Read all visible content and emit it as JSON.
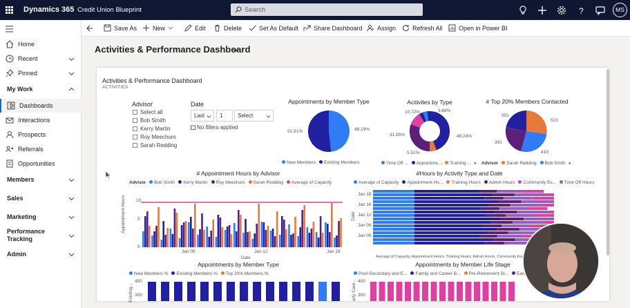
{
  "topbar": {
    "brand": "Dynamics 365",
    "app": "Credit Union Blueprint",
    "search_placeholder": "Search",
    "avatar": "MS"
  },
  "sidebar": {
    "items": [
      {
        "label": "Home",
        "icon": "home-icon"
      },
      {
        "label": "Recent",
        "icon": "clock-icon"
      },
      {
        "label": "Pinned",
        "icon": "pin-icon"
      }
    ],
    "group_mywork": "My Work",
    "mywork_items": [
      {
        "label": "Dashboards",
        "icon": "dashboard-icon"
      },
      {
        "label": "Interactions",
        "icon": "interactions-icon"
      },
      {
        "label": "Prospects",
        "icon": "prospects-icon"
      },
      {
        "label": "Referrals",
        "icon": "referrals-icon"
      },
      {
        "label": "Opportunities",
        "icon": "opportunities-icon"
      }
    ],
    "groups": [
      "Members",
      "Sales",
      "Marketing",
      "Performance Tracking",
      "Admin"
    ]
  },
  "commands": {
    "save_as": "Save As",
    "new": "New",
    "edit": "Edit",
    "delete": "Delete",
    "set_default": "Set As Default",
    "share": "Share Dashboard",
    "assign": "Assign",
    "refresh": "Refresh All",
    "open_bi": "Open in Power BI"
  },
  "page_title": "Activities & Performance Dashboard",
  "board": {
    "title": "Activities & Performance Dashboard",
    "subtitle": "ACTIVITIES",
    "advisor_label": "Advisor",
    "advisors": [
      "Select all",
      "Bob Smith",
      "Kerry Martin",
      "Roy Meechum",
      "Sarah Redding"
    ],
    "date_label": "Date",
    "date_last": "Last",
    "date_num": "1",
    "date_select": "Select",
    "no_filters": "No filters applied"
  },
  "charts": {
    "pie1": {
      "title": "Appointments by Member Type",
      "left_label": "51.81%",
      "right_label": "48.19%",
      "legend": [
        "New Members",
        "Existing Members"
      ]
    },
    "donut": {
      "title": "Acitivites by Type",
      "l1": "10.72%",
      "l2": "3.68%",
      "l3": "31.85%",
      "l4": "48.24%",
      "l5": "5.51%",
      "legend": [
        "Time Off ...",
        "Appointme...",
        "Training ..."
      ]
    },
    "pie2": {
      "title": "# Top 20% Members Contacted",
      "l1": "351",
      "l2": "523",
      "l3": "391",
      "l4": "419",
      "legend_title": "Advisor",
      "legend": [
        "Sarah Redding",
        "Bob Smith"
      ]
    },
    "bar1": {
      "title": "# Appointment Hours by Advisor",
      "legend_title": "Advisor",
      "legend": [
        "Bob Smith",
        "Kerry Martin",
        "Roy Meechum",
        "Sarah Redding",
        "Average of Capacity"
      ],
      "ylabel": "Appointment Hours",
      "xlabel": "Date",
      "yticks": [
        "10",
        "5",
        "0"
      ],
      "xticks": [
        "Jan 05",
        "Jan 12",
        "Jan 19"
      ]
    },
    "bar2": {
      "title": "#Hours by Activity Type and Date",
      "legend": [
        "Average of Capacity",
        "Appointment Ho...",
        "Training Hours",
        "Admin Hours",
        "Community Ev...",
        "Time Off Hours"
      ],
      "ylabel": "Date",
      "yticks": [
        "Jan 19",
        "Jan 16",
        "Jan 12",
        "Jan 09",
        "Jan 05"
      ],
      "xlabel": "Average of Capacity, Appointment Hours, Training Hours, Admin Hours, Community Events..."
    },
    "bar3": {
      "title": "Appointments by Member Type",
      "legend": [
        "New Members %",
        "Existing Members %",
        "Top 20% Members %"
      ],
      "ylabel": "Existing...",
      "yticks": [
        "400",
        "300"
      ]
    },
    "bar4": {
      "title": "Appointments by Member Life Stage",
      "legend": [
        "Post-Secondary and E...",
        "Family and Career B...",
        "Pre-Retirement St...",
        "Early Retirement"
      ],
      "ylabel": "arly Care...",
      "yticks": [
        "400",
        "300"
      ]
    }
  },
  "colors": {
    "blue": "#2f7cf6",
    "navy": "#2020a0",
    "orange": "#e8793c",
    "purple": "#5c1f7a",
    "pink": "#e040a0",
    "topbar": "#101733"
  }
}
